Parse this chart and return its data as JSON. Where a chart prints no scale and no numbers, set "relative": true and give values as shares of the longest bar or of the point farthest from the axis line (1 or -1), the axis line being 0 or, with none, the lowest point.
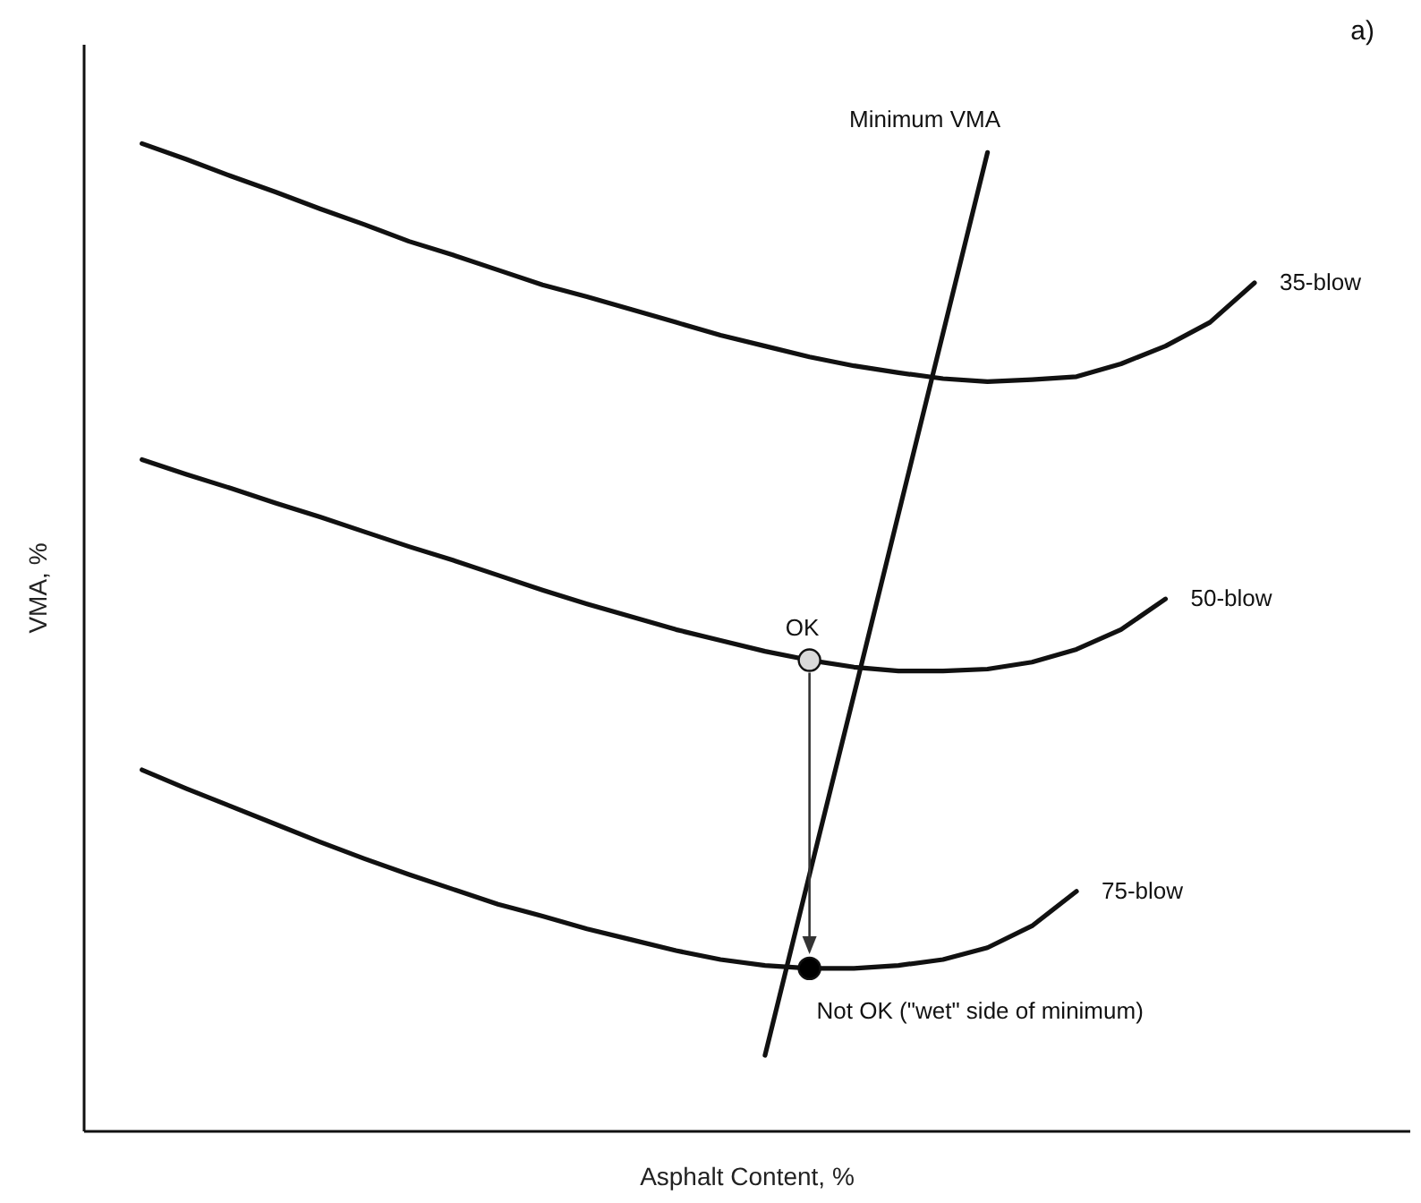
{
  "chart_data": {
    "type": "line",
    "relative": true,
    "xlabel": "Asphalt Content, %",
    "ylabel": "VMA, %",
    "tick_labels": false,
    "line_style": "solid",
    "annotations": [
      "a)"
    ],
    "categories": [
      null,
      null,
      null,
      null,
      null,
      null,
      null,
      null,
      null,
      null,
      null,
      null,
      null,
      null,
      null,
      null,
      null,
      null,
      null,
      null,
      null,
      null,
      null,
      null,
      null,
      null,
      null,
      null,
      null
    ],
    "series": [
      {
        "name": "35-blow",
        "color": "#111111",
        "values": [
          null,
          1.0,
          0.984,
          0.967,
          0.951,
          0.934,
          0.918,
          0.901,
          0.887,
          0.872,
          0.857,
          0.845,
          0.832,
          0.819,
          0.806,
          0.795,
          0.784,
          0.775,
          0.768,
          0.762,
          0.759,
          0.761,
          0.764,
          0.777,
          0.795,
          0.819,
          0.859,
          null,
          null
        ]
      },
      {
        "name": "50-blow",
        "color": "#111111",
        "values": [
          null,
          0.68,
          0.665,
          0.651,
          0.636,
          0.622,
          0.607,
          0.592,
          0.578,
          0.563,
          0.548,
          0.534,
          0.521,
          0.508,
          0.497,
          0.486,
          0.477,
          0.47,
          0.466,
          0.466,
          0.468,
          0.475,
          0.488,
          0.508,
          0.539,
          null,
          null,
          null,
          null
        ]
      },
      {
        "name": "75-blow",
        "color": "#111111",
        "values": [
          null,
          0.366,
          0.347,
          0.329,
          0.311,
          0.293,
          0.276,
          0.26,
          0.245,
          0.23,
          0.218,
          0.205,
          0.194,
          0.183,
          0.174,
          0.168,
          0.165,
          0.165,
          0.168,
          0.174,
          0.186,
          0.208,
          0.243,
          null,
          null,
          null,
          null,
          null,
          null
        ]
      },
      {
        "name": "Minimum VMA",
        "color": "#111111",
        "values": [
          null,
          null,
          null,
          null,
          null,
          null,
          null,
          null,
          null,
          null,
          null,
          null,
          null,
          null,
          null,
          0.077,
          0.26,
          0.442,
          0.625,
          0.808,
          0.991,
          null,
          null,
          null,
          null,
          null,
          null,
          null,
          null
        ]
      },
      {
        "name": "OK",
        "marker": "circle",
        "color": "#d9d9d9",
        "values": [
          null,
          null,
          null,
          null,
          null,
          null,
          null,
          null,
          null,
          null,
          null,
          null,
          null,
          null,
          null,
          null,
          0.477,
          null,
          null,
          null,
          null,
          null,
          null,
          null,
          null,
          null,
          null,
          null,
          null
        ]
      },
      {
        "name": "Not OK (\"wet\" side of minimum)",
        "marker": "circle",
        "color": "#000000",
        "values": [
          null,
          null,
          null,
          null,
          null,
          null,
          null,
          null,
          null,
          null,
          null,
          null,
          null,
          null,
          null,
          null,
          0.165,
          null,
          null,
          null,
          null,
          null,
          null,
          null,
          null,
          null,
          null,
          null,
          null
        ]
      }
    ]
  }
}
